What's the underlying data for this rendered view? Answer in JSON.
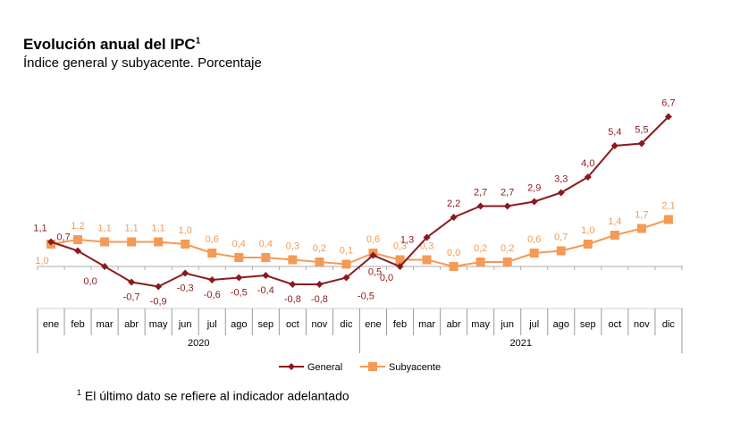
{
  "title": "Evolución anual del IPC",
  "title_sup": "1",
  "subtitle": "Índice general y subyacente. Porcentaje",
  "footnote_sup": "1",
  "footnote": "El último dato se refiere al indicador adelantado",
  "chart_data": {
    "type": "line",
    "categories": [
      "ene",
      "feb",
      "mar",
      "abr",
      "may",
      "jun",
      "jul",
      "ago",
      "sep",
      "oct",
      "nov",
      "dic",
      "ene",
      "feb",
      "mar",
      "abr",
      "may",
      "jun",
      "jul",
      "ago",
      "sep",
      "oct",
      "nov",
      "dic"
    ],
    "years": [
      "2020",
      "2021"
    ],
    "series": [
      {
        "name": "General",
        "color": "#8b1a1f",
        "marker": "diamond",
        "values": [
          1.1,
          0.7,
          0.0,
          -0.7,
          -0.9,
          -0.3,
          -0.6,
          -0.5,
          -0.4,
          -0.8,
          -0.8,
          -0.5,
          0.5,
          0.0,
          1.3,
          2.2,
          2.7,
          2.7,
          2.9,
          3.3,
          4.0,
          5.4,
          5.5,
          6.7
        ],
        "labels": [
          "1,1",
          "0,7",
          "0,0",
          "-0,7",
          "-0,9",
          "-0,3",
          "-0,6",
          "-0,5",
          "-0,4",
          "-0,8",
          "-0,8",
          "-0,5",
          "0,5",
          "0,0",
          "1,3",
          "2,2",
          "2,7",
          "2,7",
          "2,9",
          "3,3",
          "4,0",
          "5,4",
          "5,5",
          "6,7"
        ]
      },
      {
        "name": "Subyacente",
        "color": "#f59a55",
        "marker": "square",
        "values": [
          1.0,
          1.2,
          1.1,
          1.1,
          1.1,
          1.0,
          0.6,
          0.4,
          0.4,
          0.3,
          0.2,
          0.1,
          0.6,
          0.3,
          0.3,
          0.0,
          0.2,
          0.2,
          0.6,
          0.7,
          1.0,
          1.4,
          1.7,
          2.1
        ],
        "labels": [
          "1,0",
          "1,2",
          "1,1",
          "1,1",
          "1,1",
          "1,0",
          "0,6",
          "0,4",
          "0,4",
          "0,3",
          "0,2",
          "0,1",
          "0,6",
          "0,3",
          "0,3",
          "0,0",
          "0,2",
          "0,2",
          "0,6",
          "0,7",
          "1,0",
          "1,4",
          "1,7",
          "2,1"
        ]
      }
    ],
    "legend": "bottom",
    "grid": false
  }
}
